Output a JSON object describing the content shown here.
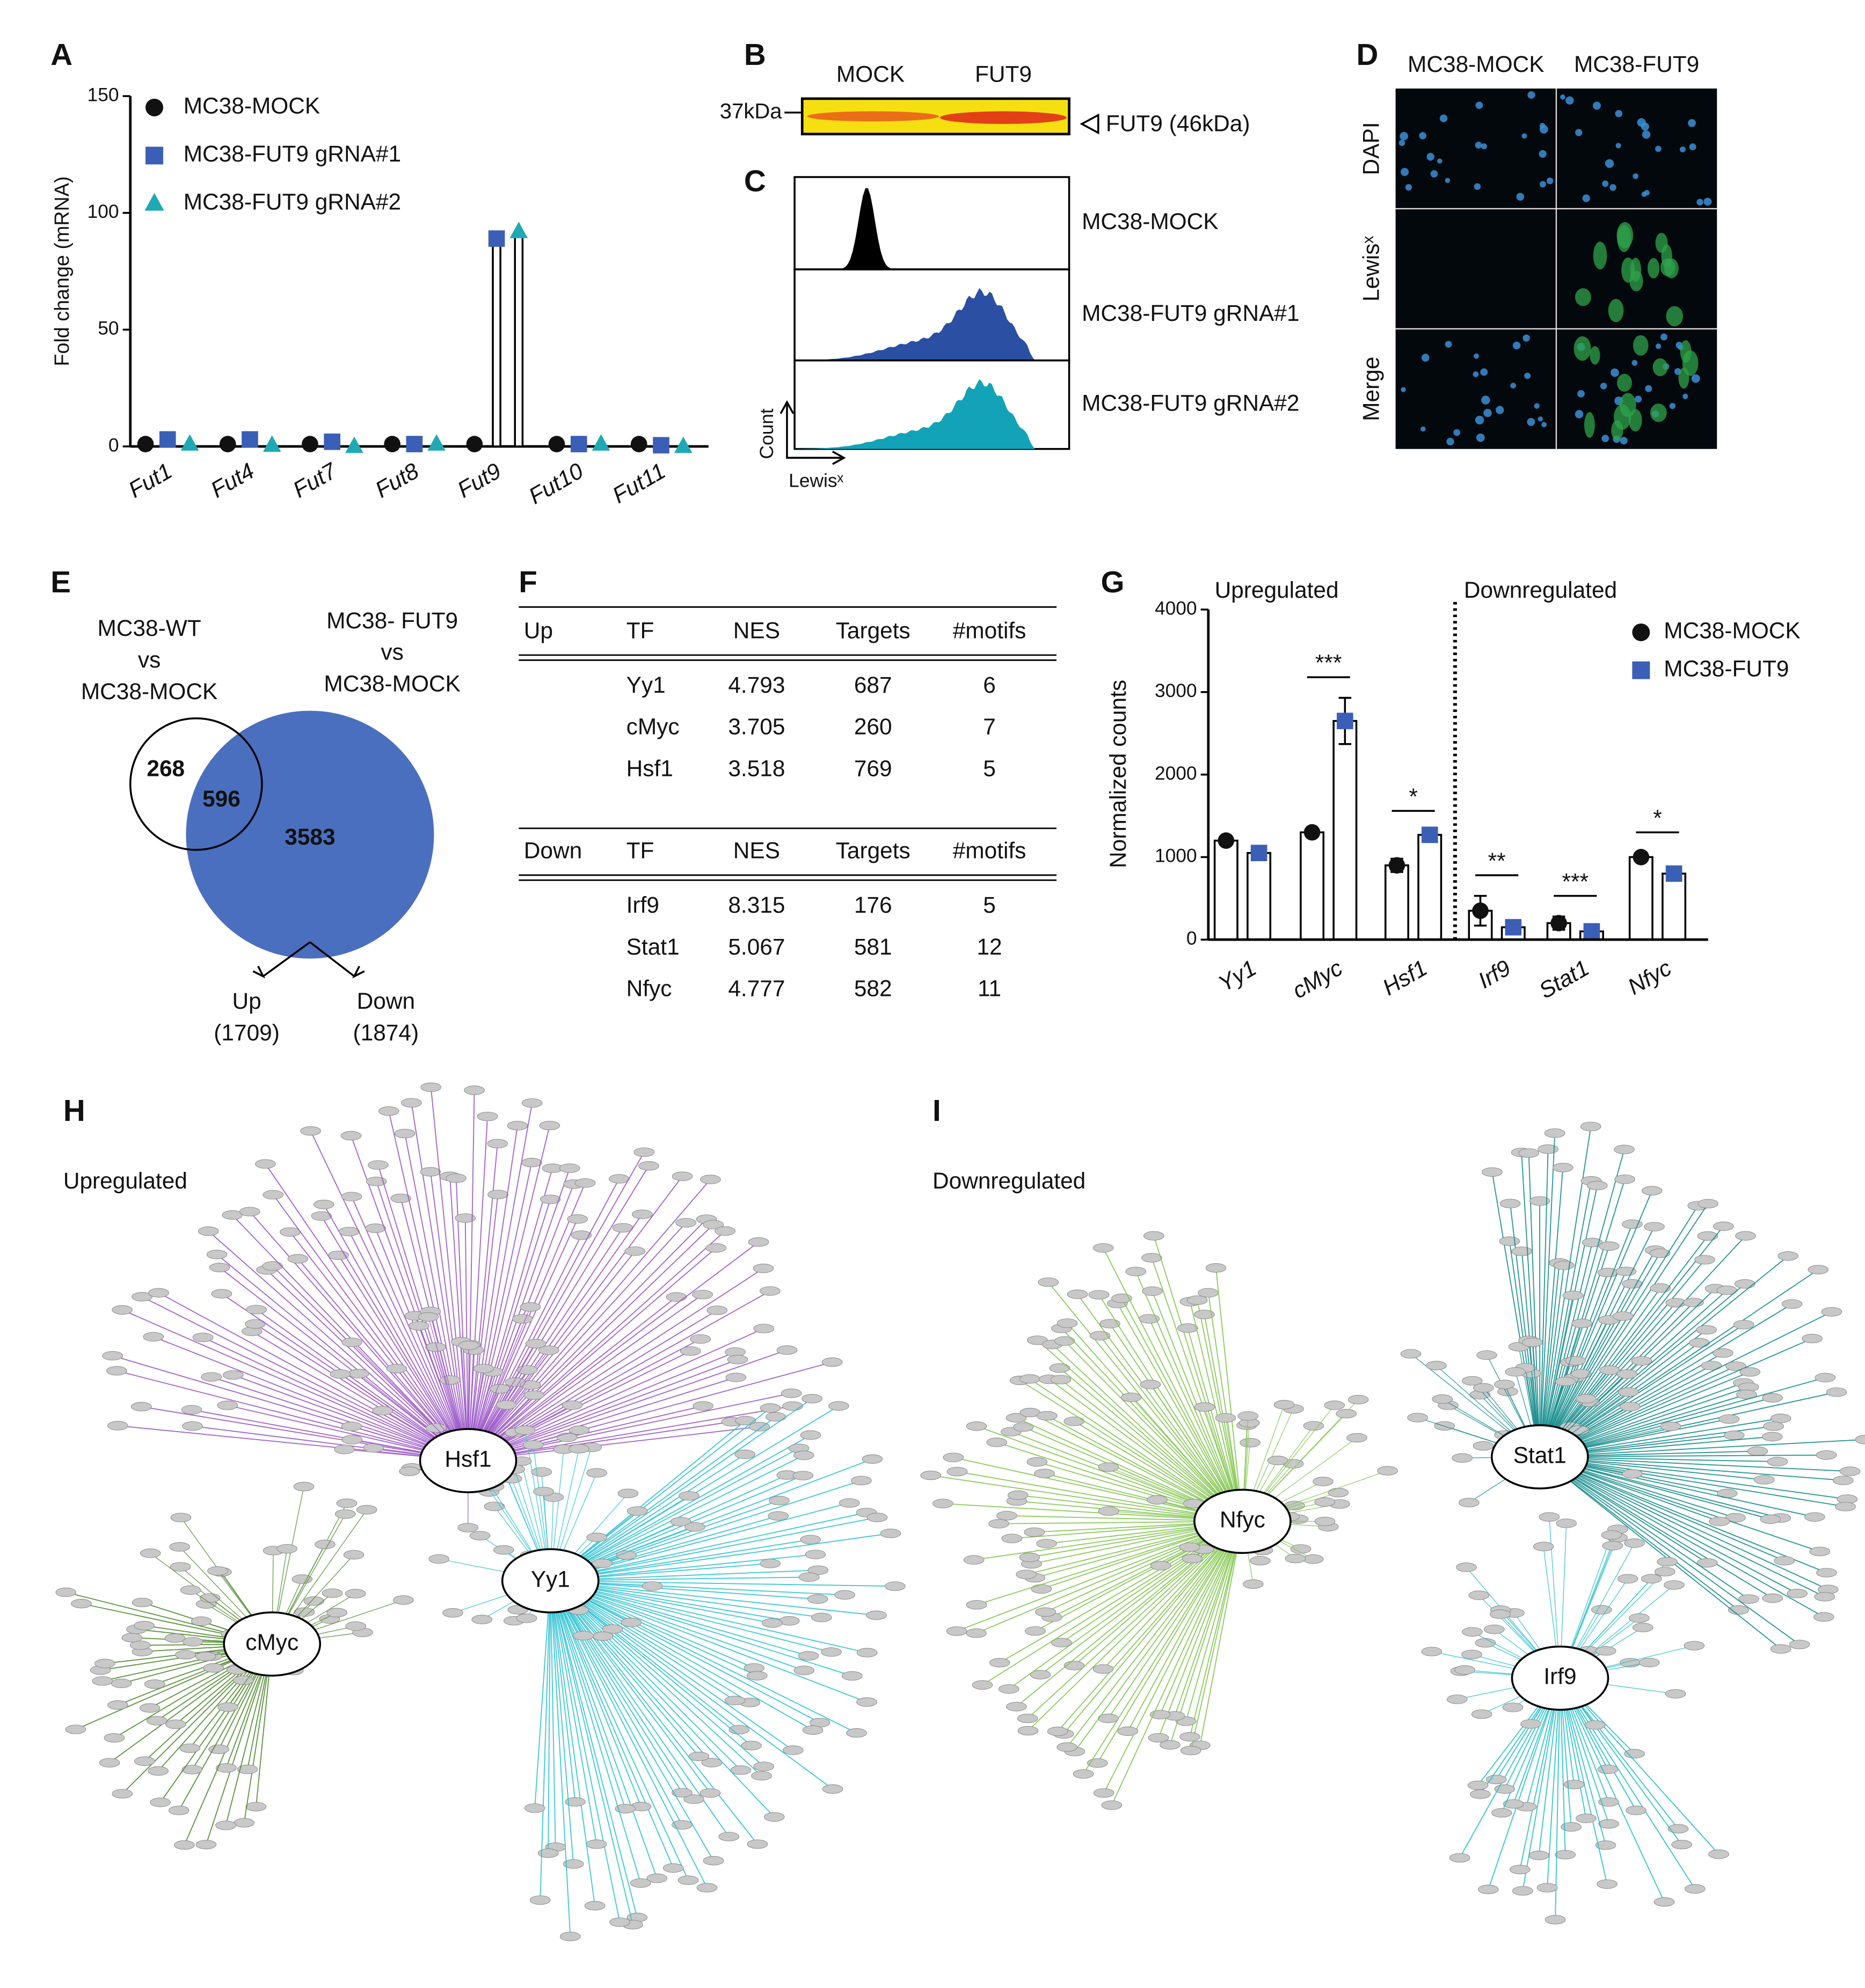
{
  "panel_labels": [
    "A",
    "B",
    "C",
    "D",
    "E",
    "F",
    "G",
    "H",
    "I"
  ],
  "chart_data": [
    {
      "type": "bar",
      "ylabel": "Fold change (mRNA)",
      "categories": [
        "Fut1",
        "Fut4",
        "Fut7",
        "Fut8",
        "Fut9",
        "Fut10",
        "Fut11"
      ],
      "series": [
        {
          "name": "MC38-MOCK",
          "color": "#111111",
          "marker": "circle",
          "values": [
            1,
            1,
            1,
            1,
            1,
            1,
            1
          ]
        },
        {
          "name": "MC38-FUT9 gRNA#1",
          "color": "#3b5fb6",
          "marker": "square",
          "values": [
            3,
            3,
            2,
            1,
            89,
            1,
            0.5
          ]
        },
        {
          "name": "MC38-FUT9 gRNA#2",
          "color": "#1fa9b5",
          "marker": "triangle",
          "values": [
            1,
            0.5,
            0,
            1,
            92,
            1,
            0
          ]
        }
      ],
      "ylim": [
        0,
        150
      ],
      "yticks": [
        0,
        50,
        100,
        150
      ]
    },
    {
      "type": "bar",
      "ylabel": "Normalized counts",
      "sections": [
        "Upregulated",
        "Downregulated"
      ],
      "categories": [
        "Yy1",
        "cMyc",
        "Hsf1",
        "Irf9",
        "Stat1",
        "Nfyc"
      ],
      "series": [
        {
          "name": "MC38-MOCK",
          "color": "#111111",
          "marker": "circle",
          "values": [
            1200,
            1300,
            900,
            350,
            200,
            1000
          ],
          "errors": [
            30,
            40,
            80,
            180,
            80,
            50
          ]
        },
        {
          "name": "MC38-FUT9",
          "color": "#3b5fb6",
          "marker": "square",
          "values": [
            1050,
            2650,
            1270,
            150,
            100,
            800
          ],
          "errors": [
            80,
            280,
            40,
            20,
            20,
            40
          ]
        }
      ],
      "significance": [
        null,
        "***",
        "*",
        "**",
        "***",
        "*"
      ],
      "ylim": [
        0,
        4000
      ],
      "yticks": [
        0,
        1000,
        2000,
        3000,
        4000
      ]
    }
  ],
  "blot": {
    "lanes": [
      "MOCK",
      "FUT9"
    ],
    "marker": "37kDa",
    "band": "FUT9 (46kDa)"
  },
  "flow": {
    "samples": [
      {
        "name": "MC38-MOCK",
        "color": "#000000"
      },
      {
        "name": "MC38-FUT9 gRNA#1",
        "color": "#2a4fa3"
      },
      {
        "name": "MC38-FUT9 gRNA#2",
        "color": "#13a3b8"
      }
    ],
    "ylabel": "Count",
    "xlabel": "Lewisˣ"
  },
  "microscopy": {
    "columns": [
      "MC38-MOCK",
      "MC38-FUT9"
    ],
    "rows": [
      "DAPI",
      "Lewisˣ",
      "Merge"
    ]
  },
  "venn": {
    "left_title": [
      "MC38-WT",
      "vs",
      "MC38-MOCK"
    ],
    "right_title": [
      "MC38- FUT9",
      "vs",
      "MC38-MOCK"
    ],
    "left_only": "268",
    "overlap": "596",
    "right_only": "3583",
    "up": [
      "Up",
      "(1709)"
    ],
    "down": [
      "Down",
      "(1874)"
    ]
  },
  "table": {
    "sections": [
      {
        "header": [
          "Up",
          "TF",
          "NES",
          "Targets",
          "#motifs"
        ],
        "rows": [
          [
            "Yy1",
            "4.793",
            "687",
            "6"
          ],
          [
            "cMyc",
            "3.705",
            "260",
            "7"
          ],
          [
            "Hsf1",
            "3.518",
            "769",
            "5"
          ]
        ]
      },
      {
        "header": [
          "Down",
          "TF",
          "NES",
          "Targets",
          "#motifs"
        ],
        "rows": [
          [
            "Irf9",
            "8.315",
            "176",
            "5"
          ],
          [
            "Stat1",
            "5.067",
            "581",
            "12"
          ],
          [
            "Nfyc",
            "4.777",
            "582",
            "11"
          ]
        ]
      }
    ]
  },
  "networks": [
    {
      "title": "Upregulated",
      "hubs": [
        {
          "name": "Hsf1",
          "color": "#9b55c8"
        },
        {
          "name": "Yy1",
          "color": "#2cc3d3"
        },
        {
          "name": "cMyc",
          "color": "#4d8a2c"
        }
      ]
    },
    {
      "title": "Downregulated",
      "hubs": [
        {
          "name": "Nfyc",
          "color": "#82c64e"
        },
        {
          "name": "Stat1",
          "color": "#138c8c"
        },
        {
          "name": "Irf9",
          "color": "#24c0cc"
        }
      ]
    }
  ]
}
